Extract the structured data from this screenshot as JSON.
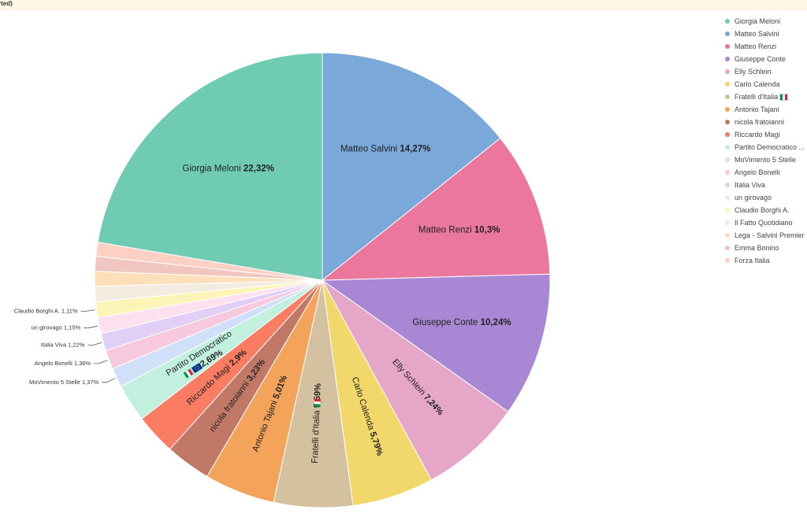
{
  "banner": {
    "text": "rted)"
  },
  "chart_data": {
    "type": "pie",
    "title": "",
    "slices": [
      {
        "label": "Matteo Salvini",
        "value": 14.27,
        "value_label": "14,27%",
        "color": "#7aa8d9",
        "inside": true
      },
      {
        "label": "Matteo Renzi",
        "value": 10.3,
        "value_label": "10,3%",
        "color": "#ec779d",
        "inside": true
      },
      {
        "label": "Giuseppe Conte",
        "value": 10.24,
        "value_label": "10,24%",
        "color": "#a888d4",
        "inside": true
      },
      {
        "label": "Elly Schlein",
        "value": 7.24,
        "value_label": "7,24%",
        "color": "#e5a6c7",
        "inside": true
      },
      {
        "label": "Carlo Calenda",
        "value": 5.79,
        "value_label": "5,79%",
        "color": "#f2d76b",
        "inside": true
      },
      {
        "label": "Fratelli d'Italia",
        "value": 5.59,
        "value_label": "5,59%",
        "color": "#d4c1a0",
        "inside": true,
        "flag": "it"
      },
      {
        "label": "Antonio Tajani",
        "value": 5.01,
        "value_label": "5,01%",
        "color": "#f4a35b",
        "inside": true
      },
      {
        "label": "nicola fratoianni",
        "value": 3.23,
        "value_label": "3,23%",
        "color": "#c17867",
        "inside": true
      },
      {
        "label": "Riccardo Magi",
        "value": 2.9,
        "value_label": "2,9%",
        "color": "#f97c63",
        "inside": true
      },
      {
        "label": "Partito Democratico",
        "value": 2.69,
        "value_label": "2,69%",
        "color": "#c2f0df",
        "inside": true,
        "flag": "it-eu"
      },
      {
        "label": "MoVimento 5 Stelle",
        "value": 1.37,
        "value_label": "1,37%",
        "color": "#cfe0f8",
        "inside": false
      },
      {
        "label": "Angelo Bonelli",
        "value": 1.36,
        "value_label": "1,36%",
        "color": "#f8c8df",
        "inside": false
      },
      {
        "label": "Italia Viva",
        "value": 1.22,
        "value_label": "1,22%",
        "color": "#e2cff5",
        "inside": false
      },
      {
        "label": "un girovago",
        "value": 1.15,
        "value_label": "1,15%",
        "color": "#fce0f0",
        "inside": false
      },
      {
        "label": "Claudio Borghi A.",
        "value": 1.11,
        "value_label": "1,11%",
        "color": "#fdf4b8",
        "inside": false
      },
      {
        "label": "Il Fatto Quotidiano",
        "value": 1.1,
        "value_label": "",
        "color": "#f4ece0",
        "inside": false
      },
      {
        "label": "Lega - Salvini Premier",
        "value": 1.05,
        "value_label": "",
        "color": "#fde0b9",
        "inside": false
      },
      {
        "label": "Emma Bonino",
        "value": 1.05,
        "value_label": "",
        "color": "#f1c6c0",
        "inside": false
      },
      {
        "label": "Forza Italia",
        "value": 1.0,
        "value_label": "",
        "color": "#fcd0c4",
        "inside": false
      },
      {
        "label": "Giorgia Meloni",
        "value": 22.32,
        "value_label": "22,32%",
        "color": "#6fcbb2",
        "inside": true
      }
    ],
    "legend": {
      "placement": "top-right",
      "entries": [
        {
          "label": "Giorgia Meloni",
          "color": "#6fcbb2"
        },
        {
          "label": "Matteo Salvini",
          "color": "#7aa8d9"
        },
        {
          "label": "Matteo Renzi",
          "color": "#ec779d"
        },
        {
          "label": "Giuseppe Conte",
          "color": "#a888d4"
        },
        {
          "label": "Elly Schlein",
          "color": "#e5a6c7"
        },
        {
          "label": "Carlo Calenda",
          "color": "#f2d76b"
        },
        {
          "label": "Fratelli d'Italia",
          "color": "#d4c1a0",
          "flag": "it"
        },
        {
          "label": "Antonio Tajani",
          "color": "#f4a35b"
        },
        {
          "label": "nicola fratoianni",
          "color": "#c17867"
        },
        {
          "label": "Riccardo Magi",
          "color": "#f97c63"
        },
        {
          "label": "Partito Democratico ...",
          "color": "#c2f0df"
        },
        {
          "label": "MoVimento 5 Stelle",
          "color": "#cfe0f8"
        },
        {
          "label": "Angelo Bonelli",
          "color": "#f8c8df"
        },
        {
          "label": "Italia Viva",
          "color": "#e2cff5"
        },
        {
          "label": "un girovago",
          "color": "#fce0f0"
        },
        {
          "label": "Claudio Borghi A.",
          "color": "#fdf4b8"
        },
        {
          "label": "Il Fatto Quotidiano",
          "color": "#f4ece0"
        },
        {
          "label": "Lega - Salvini Premier",
          "color": "#fde0b9"
        },
        {
          "label": "Emma Bonino",
          "color": "#f1c6c0"
        },
        {
          "label": "Forza Italia",
          "color": "#fcd0c4"
        }
      ]
    }
  }
}
